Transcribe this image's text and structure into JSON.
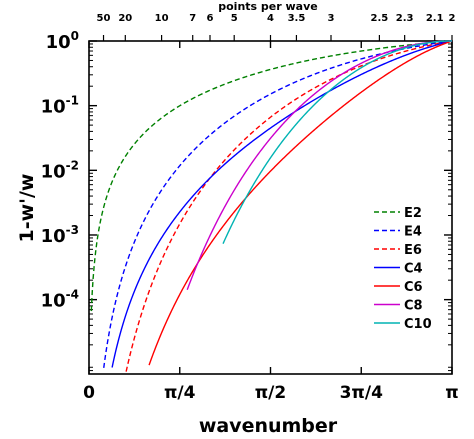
{
  "chart_data": {
    "type": "line",
    "title": "",
    "xlabel": "wavenumber",
    "ylabel": "1-w'/w",
    "top_axis_label": "points per wave",
    "xlim": [
      0,
      3.14159265
    ],
    "ylim_log10": [
      -5.15,
      0
    ],
    "log_y": true,
    "grid": false,
    "legend_position": "lower right",
    "x_ticks": [
      {
        "value": 0,
        "label": "0"
      },
      {
        "value": 0.785398,
        "label": "π/4"
      },
      {
        "value": 1.570796,
        "label": "π/2"
      },
      {
        "value": 2.356194,
        "label": "3π/4"
      },
      {
        "value": 3.141593,
        "label": "π"
      }
    ],
    "y_ticks": [
      {
        "exp": 0,
        "base": "10",
        "sup": "0"
      },
      {
        "exp": -1,
        "base": "10",
        "sup": "-1"
      },
      {
        "exp": -2,
        "base": "10",
        "sup": "-2"
      },
      {
        "exp": -3,
        "base": "10",
        "sup": "-3"
      },
      {
        "exp": -4,
        "base": "10",
        "sup": "-4"
      }
    ],
    "top_ticks": [
      {
        "ppw": 50,
        "label": "50"
      },
      {
        "ppw": 20,
        "label": "20"
      },
      {
        "ppw": 10,
        "label": "10"
      },
      {
        "ppw": 7,
        "label": "7"
      },
      {
        "ppw": 6,
        "label": "6"
      },
      {
        "ppw": 5,
        "label": "5"
      },
      {
        "ppw": 4,
        "label": "4"
      },
      {
        "ppw": 3.5,
        "label": "3.5"
      },
      {
        "ppw": 3,
        "label": "3"
      },
      {
        "ppw": 2.5,
        "label": "2.5"
      },
      {
        "ppw": 2.3,
        "label": "2.3"
      },
      {
        "ppw": 2.1,
        "label": "2.1"
      },
      {
        "ppw": 2,
        "label": "2"
      }
    ],
    "series": [
      {
        "name": "E2",
        "color": "#008000",
        "dashed": true,
        "order": 2
      },
      {
        "name": "E4",
        "color": "#0000ff",
        "dashed": true,
        "order": 4
      },
      {
        "name": "E6",
        "color": "#ff0000",
        "dashed": true,
        "order": 6
      },
      {
        "name": "C4",
        "color": "#0000ff",
        "dashed": false,
        "order": 4
      },
      {
        "name": "C6",
        "color": "#ff0000",
        "dashed": false,
        "order": 6
      },
      {
        "name": "C8",
        "color": "#cc00cc",
        "dashed": false,
        "order": 8
      },
      {
        "name": "C10",
        "color": "#00b3b3",
        "dashed": false,
        "order": 10
      }
    ]
  }
}
